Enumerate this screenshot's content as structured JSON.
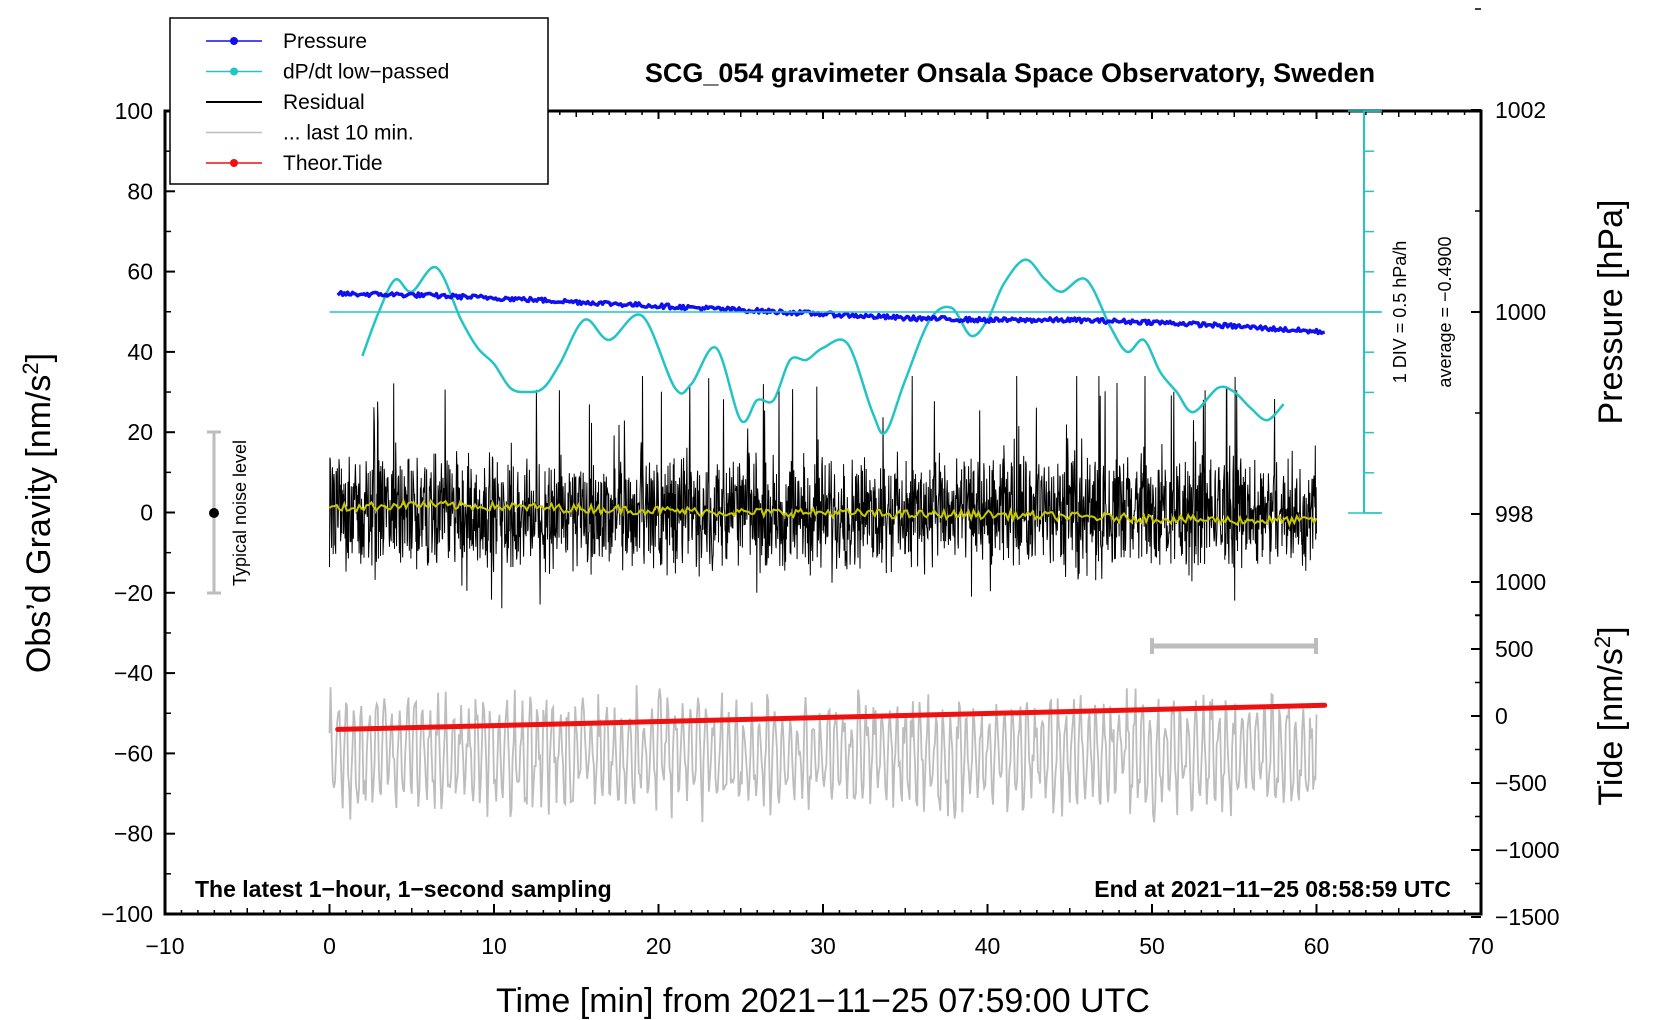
{
  "chart_data": {
    "type": "line",
    "title": "SCG_054 gravimeter Onsala Space Observatory, Sweden",
    "xlabel": "Time [min] from 2021−11−25 07:59:00 UTC",
    "ylabel": "Obs’d Gravity [nm/s",
    "ylabel_sup": "2",
    "ylabel_close": "]",
    "xlim": [
      -10,
      70
    ],
    "ylim": [
      -100,
      100
    ],
    "x_ticks": [
      -10,
      0,
      10,
      20,
      30,
      40,
      50,
      60,
      70
    ],
    "x_tick_labels": [
      "−10",
      "0",
      "10",
      "20",
      "30",
      "40",
      "50",
      "60",
      "70"
    ],
    "y_ticks": [
      -100,
      -80,
      -60,
      -40,
      -20,
      0,
      20,
      40,
      60,
      80,
      100
    ],
    "y_tick_labels": [
      "−100",
      "−80",
      "−60",
      "−40",
      "−20",
      "0",
      "20",
      "40",
      "60",
      "80",
      "100"
    ],
    "right_axis_pressure": {
      "label": "Pressure [hPa]",
      "ticks": [
        998,
        1000,
        1002
      ],
      "tick_labels": [
        "998",
        "1000",
        "1002"
      ]
    },
    "right_axis_tide": {
      "label": "Tide [nm/s",
      "label_sup": "2",
      "label_close": "]",
      "ticks": [
        -1500,
        -1000,
        -500,
        0,
        500,
        1000
      ],
      "tick_labels": [
        "−1500",
        "−1000",
        "−500",
        "0",
        "500",
        "1000"
      ]
    },
    "dpdt_scale": {
      "div_label": "1 DIV = 0.5 hPa/h",
      "average_label": "average = −0.4900"
    },
    "legend": [
      {
        "name": "Pressure",
        "color": "#1010ee",
        "marker": true
      },
      {
        "name": "dP/dt low−passed",
        "color": "#22c4c4",
        "marker": true
      },
      {
        "name": "Residual",
        "color": "#000000",
        "marker": false
      },
      {
        "name": "... last 10 min.",
        "color": "#bdbdbd",
        "marker": false
      },
      {
        "name": "Theor.Tide",
        "color": "#ee1111",
        "marker": true
      }
    ],
    "noise_label": "Typical noise level",
    "noise_range": [
      -20,
      20
    ],
    "last10_bar": [
      50,
      60
    ],
    "bottom_left_note": "The latest 1−hour, 1−second sampling",
    "bottom_right_note": "End at 2021−11−25 08:58:59 UTC",
    "series": [
      {
        "name": "Pressure",
        "unit": "hPa",
        "x": [
          0.5,
          5,
          10,
          15,
          20,
          25,
          30,
          35,
          40,
          45,
          50,
          55,
          60.5
        ],
        "values": [
          1000.18,
          1000.17,
          1000.14,
          1000.1,
          1000.06,
          1000.02,
          999.98,
          999.94,
          999.92,
          999.92,
          999.9,
          999.86,
          999.8
        ]
      },
      {
        "name": "dP/dt low−passed",
        "unit": "y",
        "x": [
          2,
          3,
          4,
          5,
          6.5,
          8,
          9,
          10,
          11,
          12,
          13,
          14,
          15.5,
          17,
          19,
          21,
          22,
          23.5,
          25,
          26,
          27,
          28,
          29,
          30,
          31.5,
          33,
          33.8,
          35,
          36.5,
          37.8,
          39,
          40,
          41,
          42.3,
          43.5,
          44.5,
          46,
          47.5,
          48.5,
          49.5,
          50.5,
          51.5,
          52.5,
          54,
          55,
          56,
          57,
          58
        ],
        "values": [
          39,
          50,
          58,
          55,
          61,
          48,
          41,
          37,
          31,
          30,
          31,
          37,
          48,
          43,
          49,
          31,
          32,
          41,
          23,
          28,
          28,
          38,
          38,
          41,
          42,
          25,
          20,
          33,
          48,
          51,
          44,
          48,
          57,
          63,
          58,
          55,
          58,
          46,
          40,
          43,
          35,
          30,
          25,
          31,
          30,
          26,
          23,
          27
        ]
      },
      {
        "name": "Residual",
        "unit": "nm/s2",
        "x_range": [
          0,
          60
        ],
        "amplitude_envelope": [
          -30,
          34
        ],
        "smoothed_x": [
          0,
          5,
          10,
          15,
          20,
          25,
          30,
          35,
          40,
          45,
          50,
          55,
          60
        ],
        "smoothed_values": [
          1,
          2,
          1.5,
          1,
          0.5,
          0,
          0,
          -0.5,
          -0.5,
          -1,
          -1.5,
          -2,
          -2
        ]
      },
      {
        "name": "... last 10 min.",
        "unit": "nm/s2",
        "x_range": [
          0,
          60
        ],
        "center": -60,
        "amplitude_envelope": [
          -87,
          -35
        ]
      },
      {
        "name": "Theor.Tide",
        "unit": "nm/s2 (tide axis)",
        "x": [
          0.5,
          60.5
        ],
        "values": [
          -100,
          80
        ]
      }
    ]
  }
}
